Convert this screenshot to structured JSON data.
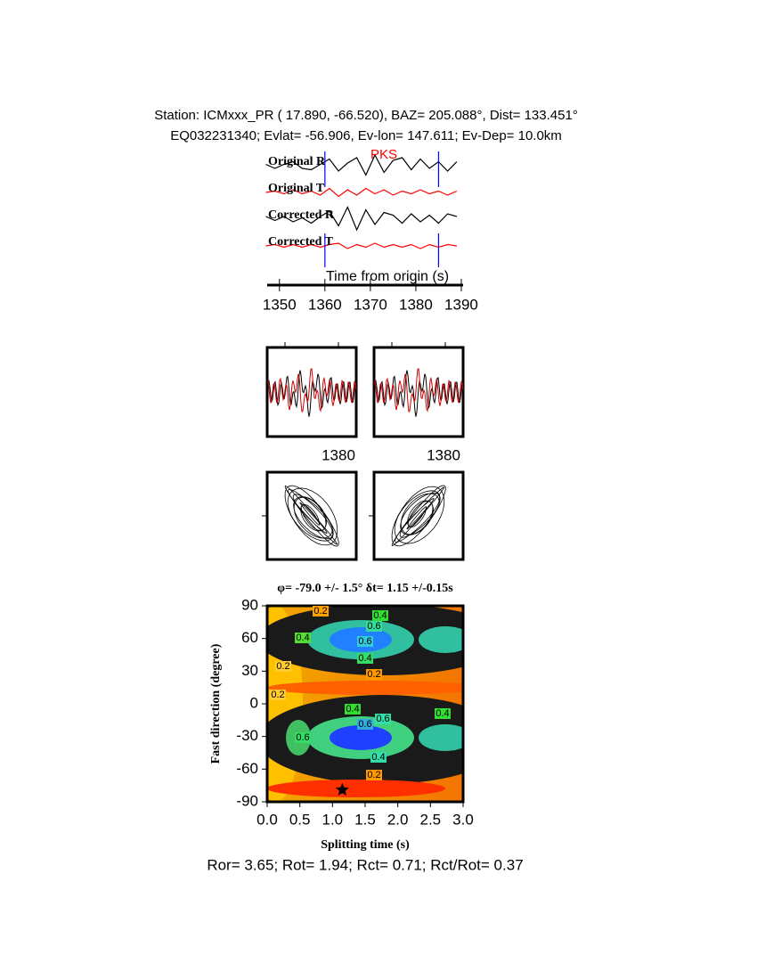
{
  "header": {
    "line1": "Station: ICMxxx_PR (  17.890,  -66.520), BAZ=  205.088°, Dist=  133.451°",
    "line2": "EQ032231340; Evlat= -56.906, Ev-lon= 147.611; Ev-Dep= 10.0km"
  },
  "chart_data": [
    {
      "type": "line",
      "phase_label": "PKS",
      "xlabel": "Time from origin (s)",
      "x": [
        1347,
        1349,
        1351,
        1353,
        1355,
        1357,
        1359,
        1361,
        1363,
        1365,
        1367,
        1369,
        1371,
        1373,
        1375,
        1377,
        1379,
        1381,
        1383,
        1385,
        1387,
        1389
      ],
      "series": [
        {
          "name": "Original R",
          "color": "#000000",
          "values": [
            0.1,
            -0.2,
            0.1,
            0.3,
            -0.2,
            -0.3,
            0.1,
            0.5,
            -0.4,
            0.2,
            0.6,
            -0.7,
            0.8,
            -0.5,
            0.4,
            0.6,
            -0.3,
            0.5,
            -0.2,
            0.3,
            -0.4,
            0.3
          ]
        },
        {
          "name": "Original T",
          "color": "#ff0000",
          "values": [
            0,
            0.1,
            -0.1,
            0.2,
            -0.1,
            0.1,
            -0.2,
            0.3,
            -0.3,
            0.2,
            -0.2,
            0.3,
            -0.1,
            0.2,
            -0.2,
            0.1,
            -0.1,
            0.2,
            -0.1,
            0.1,
            -0.2,
            0.1
          ]
        },
        {
          "name": "Corrected R",
          "color": "#000000",
          "values": [
            0.2,
            -0.1,
            0.2,
            -0.2,
            0.1,
            -0.3,
            0.2,
            0.6,
            -0.5,
            0.9,
            -0.8,
            0.7,
            -0.4,
            0.5,
            0.3,
            -0.3,
            0.4,
            -0.2,
            0.3,
            -0.3,
            0.4,
            0.2
          ]
        },
        {
          "name": "Corrected T",
          "color": "#ff0000",
          "values": [
            0,
            0.1,
            -0.1,
            0.1,
            -0.1,
            0.1,
            -0.1,
            0.1,
            0.2,
            -0.2,
            0.1,
            -0.1,
            0.2,
            -0.1,
            0.1,
            -0.1,
            0.1,
            -0.2,
            0.1,
            -0.1,
            0.1,
            0
          ]
        }
      ],
      "picks": [
        1360,
        1385
      ],
      "pick_color": "#0000ff",
      "xlim": [
        1347.3,
        1390.4
      ],
      "xticks": [
        1350,
        1360,
        1370,
        1380,
        1390
      ]
    },
    {
      "type": "contour",
      "title": "φ= -79.0 +/- 1.5° δt= 1.15 +/-0.15s",
      "xlabel": "Splitting time (s)",
      "ylabel": "Fast direction (degree)",
      "xlim": [
        0,
        3
      ],
      "ylim": [
        -90,
        90
      ],
      "xticks": [
        {
          "value": 0,
          "label": "0.0"
        },
        0.5,
        {
          "value": 1,
          "label": "1.0"
        },
        1.5,
        {
          "value": 2,
          "label": "2.0"
        },
        2.5,
        {
          "value": 3,
          "label": "3.0"
        }
      ],
      "yticks": [
        -90,
        -60,
        -30,
        0,
        30,
        60,
        90
      ],
      "best": {
        "x": 1.15,
        "y": -79.0
      },
      "contour_labels": [
        "0.2",
        "0.4",
        "0.6",
        "0.4",
        "0.6",
        "0.4",
        "0.2",
        "0.2",
        "0.2",
        "0.4",
        "0.6",
        "0.4",
        "0.6",
        "0.6",
        "0.4",
        "0.2"
      ]
    }
  ],
  "window_panels": {
    "tick_labels": [
      "1380",
      "1380"
    ]
  },
  "footer": "Ror= 3.65; Rot= 1.94; Rct= 0.71; Rct/Rot= 0.37"
}
